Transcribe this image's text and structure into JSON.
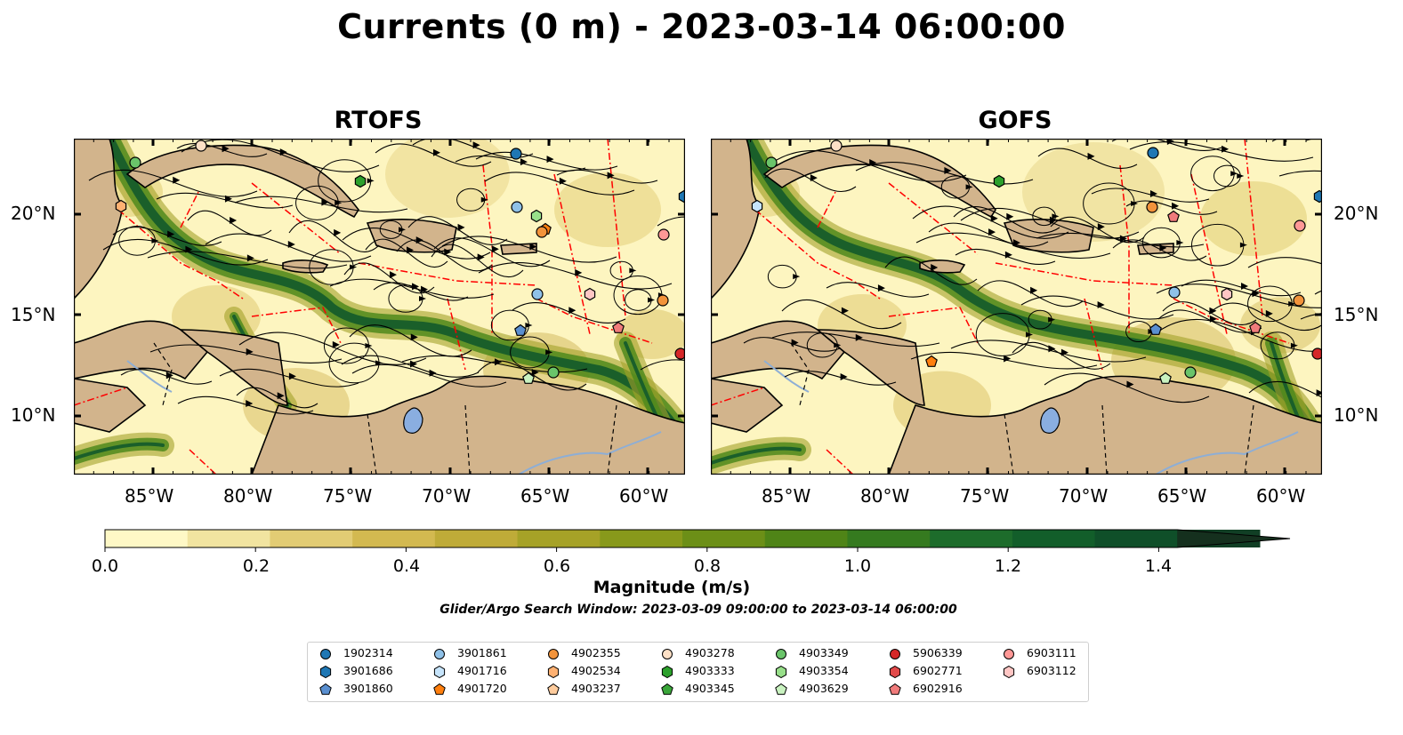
{
  "title": "Currents (0 m) - 2023-03-14 06:00:00",
  "panels": [
    {
      "title": "RTOFS"
    },
    {
      "title": "GOFS"
    }
  ],
  "x_ticks": [
    "85°W",
    "80°W",
    "75°W",
    "70°W",
    "65°W",
    "60°W"
  ],
  "y_ticks": [
    "20°N",
    "15°N",
    "10°N"
  ],
  "colorbar": {
    "label": "Magnitude (m/s)",
    "ticks": [
      "0.0",
      "0.2",
      "0.4",
      "0.6",
      "0.8",
      "1.0",
      "1.2",
      "1.4"
    ],
    "colors": [
      "#fef8c6",
      "#f1e4a0",
      "#e2cc74",
      "#d3b950",
      "#bfab38",
      "#a6a227",
      "#88991b",
      "#6c8f17",
      "#4f8417",
      "#357a1f",
      "#1d6c2b",
      "#125e2a",
      "#0f4f29",
      "#113f25",
      "#15301e"
    ],
    "extend": "max"
  },
  "search_window": "Glider/Argo Search Window: 2023-03-09 09:00:00 to 2023-03-14 06:00:00",
  "colors": {
    "land": "#d2b48c",
    "lake": "#8aaee0",
    "ocean_low": "#fdf5c0",
    "eez": "#ff0000"
  },
  "legend": [
    {
      "id": "1902314",
      "marker": "circle",
      "color": "#1f77b4"
    },
    {
      "id": "3901686",
      "marker": "hexagon",
      "color": "#1f77b4"
    },
    {
      "id": "3901860",
      "marker": "pentagon",
      "color": "#5a8fd0"
    },
    {
      "id": "3901861",
      "marker": "circle",
      "color": "#8fc1e8"
    },
    {
      "id": "4901716",
      "marker": "hexagon",
      "color": "#c6e4fb"
    },
    {
      "id": "4901720",
      "marker": "pentagon",
      "color": "#ff7f0e"
    },
    {
      "id": "4902355",
      "marker": "circle",
      "color": "#f2933b"
    },
    {
      "id": "4902534",
      "marker": "hexagon",
      "color": "#ffb172"
    },
    {
      "id": "4903237",
      "marker": "pentagon",
      "color": "#ffcc9d"
    },
    {
      "id": "4903278",
      "marker": "circle",
      "color": "#fde0c6"
    },
    {
      "id": "4903333",
      "marker": "hexagon",
      "color": "#2ca02c"
    },
    {
      "id": "4903345",
      "marker": "pentagon",
      "color": "#3aa63a"
    },
    {
      "id": "4903349",
      "marker": "circle",
      "color": "#6ac46a"
    },
    {
      "id": "4903354",
      "marker": "hexagon",
      "color": "#98df8a"
    },
    {
      "id": "4903629",
      "marker": "pentagon",
      "color": "#c9f2c0"
    },
    {
      "id": "5906339",
      "marker": "circle",
      "color": "#d62728"
    },
    {
      "id": "6902771",
      "marker": "hexagon",
      "color": "#e24a4a"
    },
    {
      "id": "6902916",
      "marker": "pentagon",
      "color": "#f07b7b"
    },
    {
      "id": "6903111",
      "marker": "circle",
      "color": "#ff9896"
    },
    {
      "id": "6903112",
      "marker": "hexagon",
      "color": "#ffc6c4"
    }
  ]
}
